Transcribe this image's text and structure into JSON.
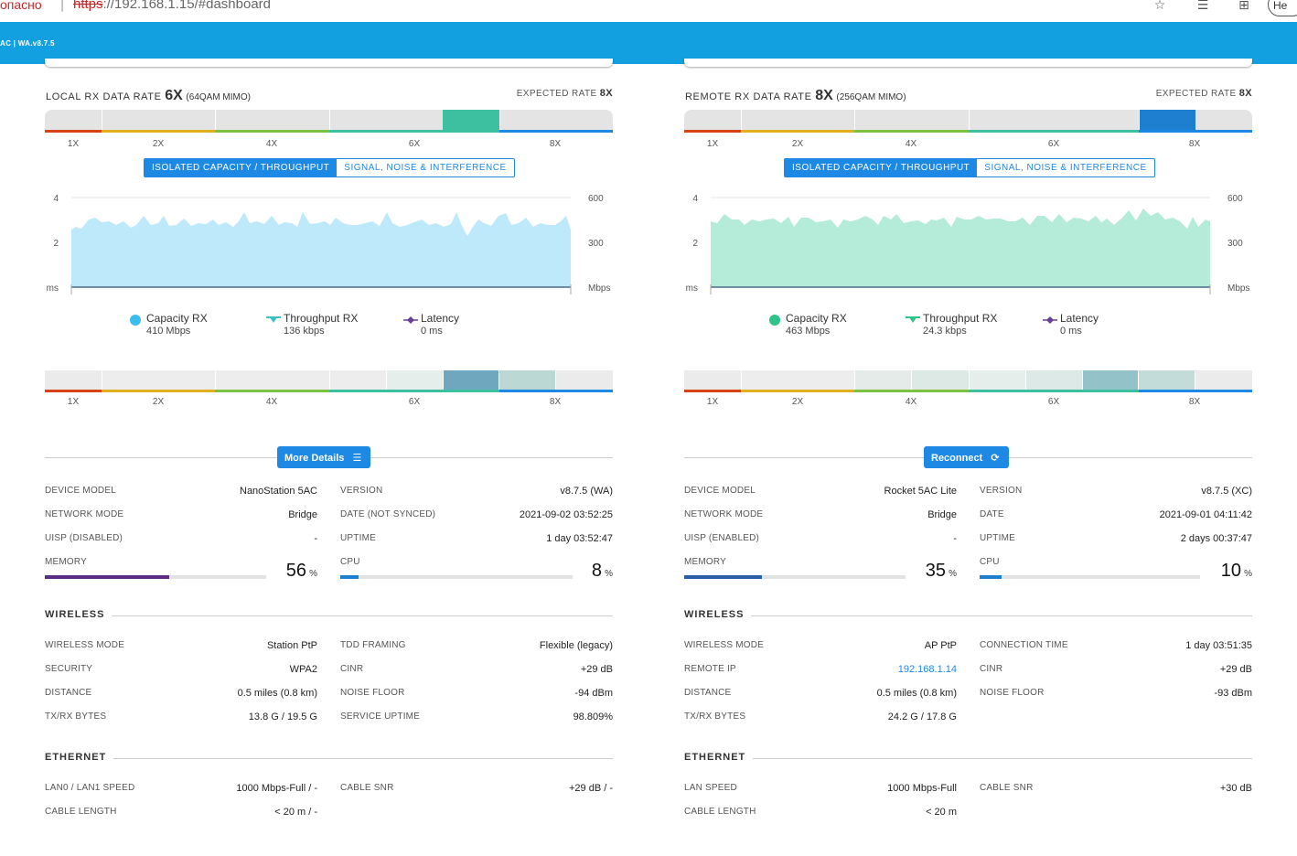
{
  "browser": {
    "insecure_label": "опасно",
    "url_proto": "https",
    "url_rest": "://192.168.1.15/#dashboard",
    "profile_label": "Не"
  },
  "app": {
    "version_label": "AC | WA.v8.7.5"
  },
  "colors": {
    "accent": "#1e88e5",
    "header": "#12a0e0",
    "local_capacity": "#bde9fb",
    "remote_capacity": "#b4ecd9",
    "local_marker": "#3cc0a0",
    "remote_marker": "#1e7fd0"
  },
  "local": {
    "rate_title": "LOCAL RX DATA RATE",
    "rate_value": "6X",
    "rate_mod": "(64QAM MIMO)",
    "expected_label": "EXPECTED RATE",
    "expected_value": "8X",
    "ticks": [
      "1X",
      "2X",
      "4X",
      "6X",
      "8X"
    ],
    "tab_capacity": "ISOLATED CAPACITY / THROUGHPUT",
    "tab_signal": "SIGNAL, NOISE & INTERFERENCE",
    "chart": {
      "y_left": [
        "4",
        "2",
        "ms"
      ],
      "y_right": [
        "600",
        "300",
        "Mbps"
      ]
    },
    "legend": [
      {
        "name": "Capacity RX",
        "value": "410 Mbps"
      },
      {
        "name": "Throughput RX",
        "value": "136 kbps"
      },
      {
        "name": "Latency",
        "value": "0 ms"
      }
    ],
    "button": "More Details",
    "device": {
      "model_label": "DEVICE MODEL",
      "model": "NanoStation 5AC",
      "mode_label": "NETWORK MODE",
      "mode": "Bridge",
      "uisp_label": "UISP (DISABLED)",
      "uisp": "-",
      "version_label": "VERSION",
      "version": "v8.7.5 (WA)",
      "date_label": "DATE (NOT SYNCED)",
      "date": "2021-09-02 03:52:25",
      "uptime_label": "UPTIME",
      "uptime": "1 day 03:52:47",
      "memory_label": "MEMORY",
      "memory": "56",
      "memory_unit": "%",
      "cpu_label": "CPU",
      "cpu": "8",
      "cpu_unit": "%"
    },
    "wireless": {
      "title": "WIRELESS",
      "rows_left": [
        {
          "label": "WIRELESS MODE",
          "value": "Station PtP"
        },
        {
          "label": "SECURITY",
          "value": "WPA2"
        },
        {
          "label": "DISTANCE",
          "value": "0.5 miles (0.8 km)"
        },
        {
          "label": "TX/RX BYTES",
          "value": "13.8 G / 19.5 G"
        }
      ],
      "rows_right": [
        {
          "label": "TDD FRAMING",
          "value": "Flexible (legacy)"
        },
        {
          "label": "CINR",
          "value": "+29 dB"
        },
        {
          "label": "NOISE FLOOR",
          "value": "-94 dBm"
        },
        {
          "label": "SERVICE UPTIME",
          "value": "98.809%"
        }
      ]
    },
    "ethernet": {
      "title": "ETHERNET",
      "speed_label": "LAN0 / LAN1 SPEED",
      "speed": "1000 Mbps-Full / -",
      "length_label": "CABLE LENGTH",
      "length": "< 20 m / -",
      "snr_label": "CABLE SNR",
      "snr": "+29 dB / -"
    }
  },
  "remote": {
    "rate_title": "REMOTE RX DATA RATE",
    "rate_value": "8X",
    "rate_mod": "(256QAM MIMO)",
    "expected_label": "EXPECTED RATE",
    "expected_value": "8X",
    "ticks": [
      "1X",
      "2X",
      "4X",
      "6X",
      "8X"
    ],
    "tab_capacity": "ISOLATED CAPACITY / THROUGHPUT",
    "tab_signal": "SIGNAL, NOISE & INTERFERENCE",
    "chart": {
      "y_left": [
        "4",
        "2",
        "ms"
      ],
      "y_right": [
        "600",
        "300",
        "Mbps"
      ]
    },
    "legend": [
      {
        "name": "Capacity RX",
        "value": "463 Mbps"
      },
      {
        "name": "Throughput RX",
        "value": "24.3 kbps"
      },
      {
        "name": "Latency",
        "value": "0 ms"
      }
    ],
    "button": "Reconnect",
    "device": {
      "model_label": "DEVICE MODEL",
      "model": "Rocket 5AC Lite",
      "mode_label": "NETWORK MODE",
      "mode": "Bridge",
      "uisp_label": "UISP (ENABLED)",
      "uisp": "-",
      "version_label": "VERSION",
      "version": "v8.7.5 (XC)",
      "date_label": "DATE",
      "date": "2021-09-01 04:11:42",
      "uptime_label": "UPTIME",
      "uptime": "2 days 00:37:47",
      "memory_label": "MEMORY",
      "memory": "35",
      "memory_unit": "%",
      "cpu_label": "CPU",
      "cpu": "10",
      "cpu_unit": "%"
    },
    "wireless": {
      "title": "WIRELESS",
      "rows_left": [
        {
          "label": "WIRELESS MODE",
          "value": "AP PtP"
        },
        {
          "label": "REMOTE IP",
          "value": "192.168.1.14"
        },
        {
          "label": "DISTANCE",
          "value": "0.5 miles (0.8 km)"
        },
        {
          "label": "TX/RX BYTES",
          "value": "24.2 G / 17.8 G"
        }
      ],
      "rows_right": [
        {
          "label": "CONNECTION TIME",
          "value": "1 day 03:51:35"
        },
        {
          "label": "CINR",
          "value": "+29 dB"
        },
        {
          "label": "NOISE FLOOR",
          "value": "-93 dBm"
        }
      ]
    },
    "ethernet": {
      "title": "ETHERNET",
      "speed_label": "LAN SPEED",
      "speed": "1000 Mbps-Full",
      "length_label": "CABLE LENGTH",
      "length": "< 20 m",
      "snr_label": "CABLE SNR",
      "snr": "+30 dB"
    }
  }
}
